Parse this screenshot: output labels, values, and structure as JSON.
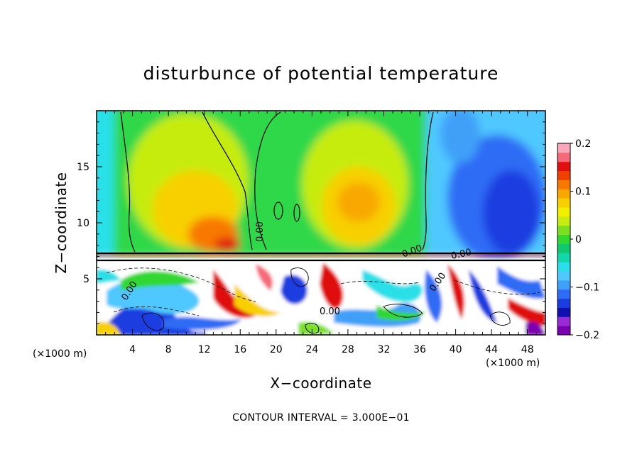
{
  "chart_data": {
    "type": "heatmap",
    "title": "disturbunce of potential temperature",
    "xlabel": "X−coordinate",
    "ylabel": "Z−coordinate",
    "x_unit": "(×1000 m)",
    "z_unit": "(×1000 m)",
    "xlim": [
      0,
      50
    ],
    "ylim": [
      0,
      20
    ],
    "x_ticks": [
      "4",
      "8",
      "12",
      "16",
      "20",
      "24",
      "28",
      "32",
      "36",
      "40",
      "44",
      "48"
    ],
    "x_tick_values": [
      4,
      8,
      12,
      16,
      20,
      24,
      28,
      32,
      36,
      40,
      44,
      48
    ],
    "y_ticks": [
      "5",
      "10",
      "15"
    ],
    "y_tick_values": [
      5,
      10,
      15
    ],
    "colorbar": {
      "min": -0.2,
      "max": 0.2,
      "tick_labels": [
        "0.2",
        "0.1",
        "0",
        "−0.1",
        "−0.2"
      ],
      "tick_values": [
        0.2,
        0.1,
        0,
        -0.1,
        -0.2
      ],
      "colors": [
        "#7b00b0",
        "#9a2ad8",
        "#1010b0",
        "#1a3ce0",
        "#2e6cf5",
        "#3fa0f8",
        "#50c8ff",
        "#2ae0e8",
        "#10d8a8",
        "#10c870",
        "#30d830",
        "#7ce020",
        "#c6ec10",
        "#f0f000",
        "#f8d000",
        "#f8a800",
        "#f87800",
        "#f04000",
        "#e01010",
        "#f46a78",
        "#f8a8b8"
      ]
    },
    "contour_labels": [
      "0.00",
      "0.00",
      "0.00",
      "0.00",
      "0.00",
      "0.00"
    ],
    "annotation": "CONTOUR INTERVAL = 3.000E−01"
  }
}
